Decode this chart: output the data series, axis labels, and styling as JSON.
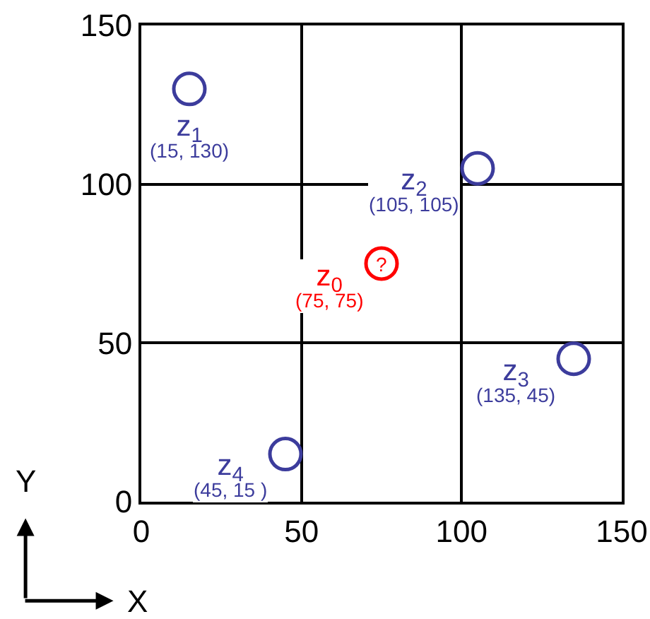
{
  "chart_data": {
    "type": "scatter",
    "xlabel": "X",
    "ylabel": "Y",
    "xlim": [
      0,
      150
    ],
    "ylim": [
      0,
      150
    ],
    "xticks": [
      0,
      50,
      100,
      150
    ],
    "yticks": [
      0,
      50,
      100,
      150
    ],
    "grid": true,
    "marker": "circle",
    "series": [
      {
        "name": "z$_{0}$",
        "color": "#ff0000",
        "x": [
          75
        ],
        "values": [
          75
        ],
        "value_labels": [
          "(75, 75)"
        ]
      },
      {
        "name": "z$_{1}$",
        "color": "#3c3c9c",
        "x": [
          15
        ],
        "values": [
          130
        ],
        "value_labels": [
          "(15, 130)"
        ]
      },
      {
        "name": "z$_{2}$",
        "color": "#3c3c9c",
        "x": [
          105
        ],
        "values": [
          105
        ],
        "value_labels": [
          "(105, 105)"
        ]
      },
      {
        "name": "z$_{3}$",
        "color": "#3c3c9c",
        "x": [
          135
        ],
        "values": [
          45
        ],
        "value_labels": [
          "(135, 45)"
        ]
      },
      {
        "name": "z$_{4}$",
        "color": "#3c3c9c",
        "x": [
          45
        ],
        "values": [
          15
        ],
        "value_labels": [
          "(45, 15 )"
        ]
      }
    ],
    "annotations": [
      {
        "text": "?",
        "x": 75,
        "y": 75
      }
    ]
  }
}
